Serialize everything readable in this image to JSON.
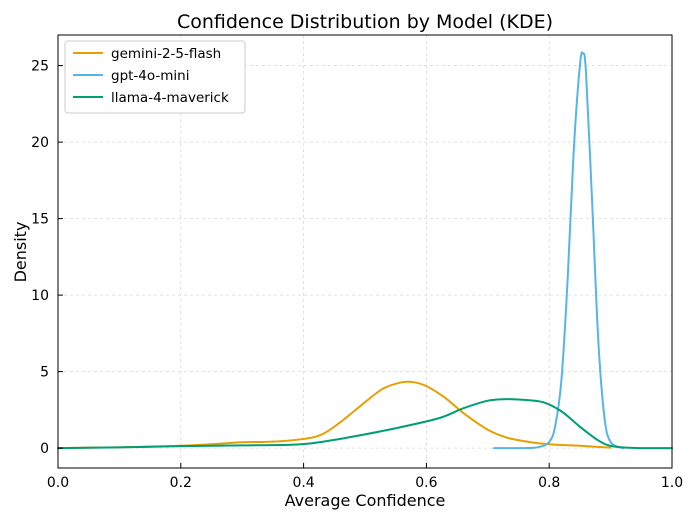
{
  "chart_data": {
    "type": "line",
    "title": "Confidence Distribution by Model (KDE)",
    "xlabel": "Average Confidence",
    "ylabel": "Density",
    "xlim": [
      0.0,
      1.0
    ],
    "ylim": [
      -1.3,
      27.0
    ],
    "grid": true,
    "legend_position": "top-left",
    "x_ticks": [
      0.0,
      0.2,
      0.4,
      0.6,
      0.8,
      1.0
    ],
    "x_tick_labels": [
      "0.0",
      "0.2",
      "0.4",
      "0.6",
      "0.8",
      "1.0"
    ],
    "y_ticks": [
      0,
      5,
      10,
      15,
      20,
      25
    ],
    "y_tick_labels": [
      "0",
      "5",
      "10",
      "15",
      "20",
      "25"
    ],
    "series": [
      {
        "name": "gemini-2-5-flash",
        "color": "#E69F00",
        "x": [
          0.0,
          0.1,
          0.2,
          0.25,
          0.3,
          0.35,
          0.4,
          0.43,
          0.46,
          0.5,
          0.53,
          0.56,
          0.58,
          0.6,
          0.63,
          0.66,
          0.7,
          0.73,
          0.76,
          0.8,
          0.85,
          0.9
        ],
        "y": [
          0.0,
          0.05,
          0.15,
          0.25,
          0.38,
          0.42,
          0.6,
          0.9,
          1.7,
          3.0,
          3.9,
          4.3,
          4.3,
          4.05,
          3.3,
          2.3,
          1.2,
          0.7,
          0.45,
          0.25,
          0.15,
          0.03
        ]
      },
      {
        "name": "gpt-4o-mini",
        "color": "#56B4E9",
        "x": [
          0.71,
          0.75,
          0.78,
          0.8,
          0.81,
          0.82,
          0.83,
          0.84,
          0.85,
          0.855,
          0.86,
          0.87,
          0.88,
          0.89,
          0.9,
          0.92
        ],
        "y": [
          0.0,
          0.0,
          0.05,
          0.4,
          1.5,
          4.5,
          11.0,
          19.5,
          25.0,
          25.8,
          24.5,
          16.0,
          7.0,
          2.0,
          0.4,
          0.0
        ]
      },
      {
        "name": "llama-4-maverick",
        "color": "#009E73",
        "x": [
          0.0,
          0.1,
          0.2,
          0.3,
          0.38,
          0.42,
          0.48,
          0.55,
          0.62,
          0.66,
          0.7,
          0.73,
          0.76,
          0.79,
          0.82,
          0.85,
          0.88,
          0.9,
          0.93,
          1.0
        ],
        "y": [
          0.0,
          0.05,
          0.13,
          0.18,
          0.22,
          0.35,
          0.75,
          1.3,
          1.95,
          2.6,
          3.1,
          3.2,
          3.15,
          3.0,
          2.4,
          1.4,
          0.5,
          0.15,
          0.02,
          0.0
        ]
      }
    ]
  }
}
